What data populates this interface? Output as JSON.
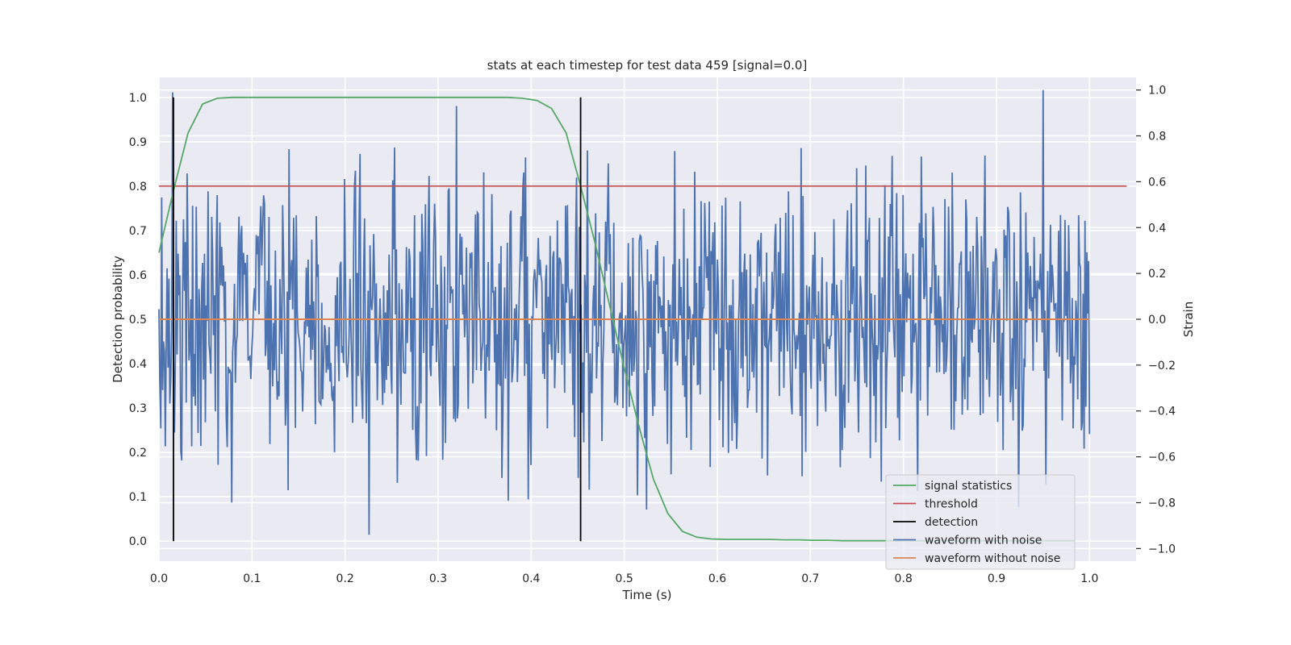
{
  "chart_data": {
    "type": "line",
    "title": "stats at each timestep for test data 459 [signal=0.0]",
    "xlabel": "Time (s)",
    "ylabel": "Detection probability",
    "y2label": "Strain",
    "xlim": [
      0.0,
      1.05
    ],
    "ylim": [
      -0.045,
      1.045
    ],
    "y2lim": [
      -1.055,
      1.055
    ],
    "xticks": [
      "0.0",
      "0.1",
      "0.2",
      "0.3",
      "0.4",
      "0.5",
      "0.6",
      "0.7",
      "0.8",
      "0.9",
      "1.0"
    ],
    "yticks": [
      "0.0",
      "0.1",
      "0.2",
      "0.3",
      "0.4",
      "0.5",
      "0.6",
      "0.7",
      "0.8",
      "0.9",
      "1.0"
    ],
    "y2ticks": [
      "−1.0",
      "−0.8",
      "−0.6",
      "−0.4",
      "−0.2",
      "0.0",
      "0.2",
      "0.4",
      "0.6",
      "0.8",
      "1.0"
    ],
    "grid": true,
    "legend_position": "lower-right",
    "series": [
      {
        "name": "signal statistics",
        "color": "#55a868",
        "axis": "left",
        "x": [
          0.0,
          0.0156,
          0.0313,
          0.0469,
          0.0625,
          0.0781,
          0.0938,
          0.1094,
          0.125,
          0.1406,
          0.1563,
          0.1719,
          0.1875,
          0.2031,
          0.2188,
          0.2344,
          0.25,
          0.2656,
          0.2813,
          0.2969,
          0.3125,
          0.3281,
          0.3438,
          0.3594,
          0.375,
          0.3906,
          0.4063,
          0.4219,
          0.4375,
          0.4531,
          0.4688,
          0.4844,
          0.5,
          0.5156,
          0.5313,
          0.5469,
          0.5625,
          0.5781,
          0.5938,
          0.6094,
          0.625,
          0.6406,
          0.6563,
          0.6719,
          0.6875,
          0.7031,
          0.7188,
          0.7344,
          0.75,
          0.7656,
          0.7813,
          0.7969,
          0.8125,
          0.8281,
          0.8438,
          0.8594,
          0.875,
          0.8906,
          0.9063,
          0.9219,
          0.9375,
          0.9531,
          0.9688,
          0.9844
        ],
        "y": [
          0.65,
          0.79,
          0.92,
          0.985,
          0.998,
          1.0,
          1.0,
          1.0,
          1.0,
          1.0,
          1.0,
          1.0,
          1.0,
          1.0,
          1.0,
          1.0,
          1.0,
          1.0,
          1.0,
          1.0,
          1.0,
          1.0,
          1.0,
          1.0,
          1.0,
          0.998,
          0.993,
          0.975,
          0.92,
          0.8,
          0.67,
          0.53,
          0.39,
          0.26,
          0.14,
          0.062,
          0.022,
          0.009,
          0.005,
          0.004,
          0.004,
          0.004,
          0.004,
          0.003,
          0.003,
          0.002,
          0.002,
          0.001,
          0.001,
          0.001,
          0.001,
          0.001,
          0.001,
          0.001,
          0.001,
          0.001,
          0.001,
          0.001,
          0.001,
          0.001,
          0.001,
          0.001,
          0.001,
          0.001
        ]
      },
      {
        "name": "threshold",
        "color": "#c44e52",
        "axis": "left",
        "x": [
          0.0,
          1.04
        ],
        "y": [
          0.8,
          0.8
        ]
      },
      {
        "name": "detection",
        "color": "#000000",
        "axis": "left",
        "segments": [
          {
            "x": 0.0156,
            "y": [
              0.0,
              1.0
            ]
          },
          {
            "x": 0.4531,
            "y": [
              0.0,
              1.0
            ]
          }
        ]
      },
      {
        "name": "waveform with noise",
        "color": "#4c72b0",
        "axis": "right",
        "x_range": [
          0.0,
          1.0
        ],
        "n_points": 1024,
        "approx_mean": 0.0,
        "approx_std": 0.3,
        "approx_min": -0.94,
        "approx_max": 1.0,
        "notable_points": [
          {
            "x": 0.015,
            "y": 0.99
          },
          {
            "x": 0.226,
            "y": -0.94
          },
          {
            "x": 0.32,
            "y": 0.93
          },
          {
            "x": 0.524,
            "y": -0.83
          },
          {
            "x": 0.95,
            "y": 1.0
          },
          {
            "x": 0.953,
            "y": -0.72
          }
        ]
      },
      {
        "name": "waveform without noise",
        "color": "#dd8452",
        "axis": "right",
        "x": [
          0.0,
          1.0
        ],
        "y": [
          0.0,
          0.0
        ]
      }
    ]
  }
}
